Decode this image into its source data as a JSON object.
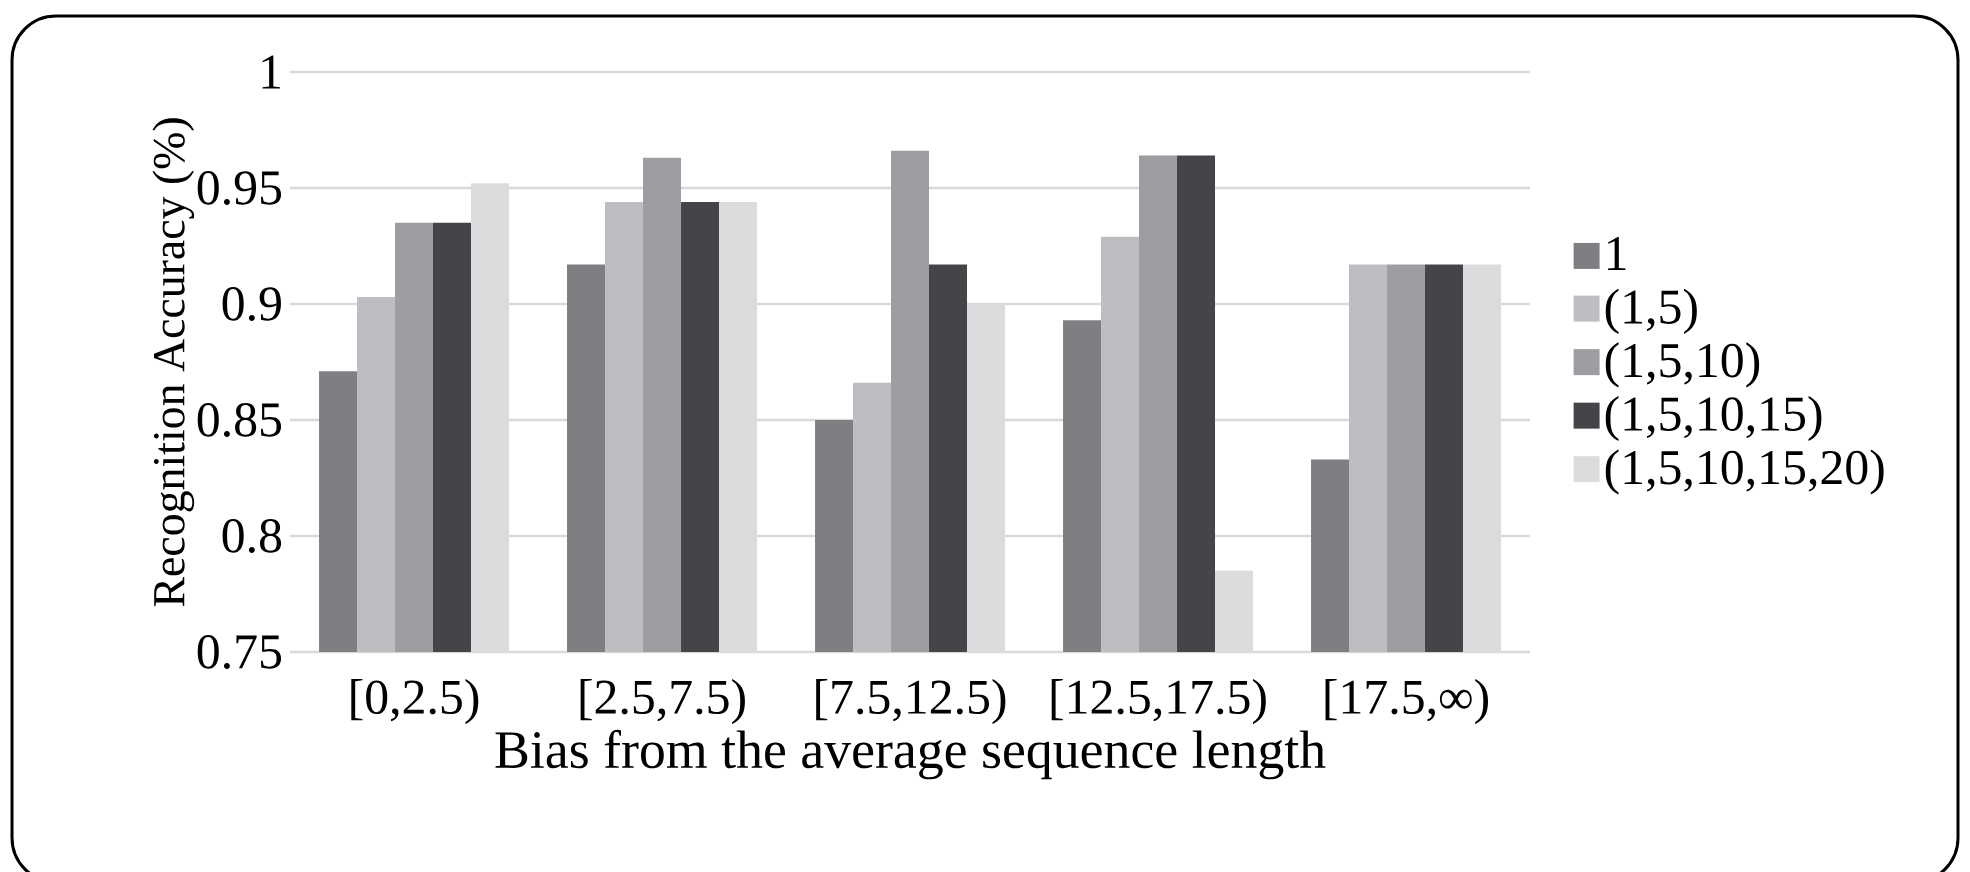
{
  "chart_data": {
    "type": "bar",
    "xlabel": "Bias from the average sequence length",
    "ylabel": "Recognition Accuracy (%)",
    "categories": [
      "[0,2.5)",
      "[2.5,7.5)",
      "[7.5,12.5)",
      "[12.5,17.5)",
      "[17.5,∞)"
    ],
    "series": [
      {
        "name": "1",
        "color": "#7f7f83",
        "values": [
          0.871,
          0.917,
          0.85,
          0.893,
          0.833
        ]
      },
      {
        "name": "(1,5)",
        "color": "#bdbec2",
        "values": [
          0.903,
          0.944,
          0.866,
          0.929,
          0.917
        ]
      },
      {
        "name": "(1,5,10)",
        "color": "#9d9ea2",
        "values": [
          0.935,
          0.963,
          0.966,
          0.964,
          0.917
        ]
      },
      {
        "name": "(1,5,10,15)",
        "color": "#444548",
        "values": [
          0.935,
          0.944,
          0.917,
          0.964,
          0.917
        ]
      },
      {
        "name": "(1,5,10,15,20)",
        "color": "#dcdcde",
        "values": [
          0.952,
          0.944,
          0.9,
          0.785,
          0.917
        ]
      }
    ],
    "ylim": [
      0.75,
      1
    ],
    "yticks": [
      0.75,
      0.8,
      0.85,
      0.9,
      0.95,
      1
    ],
    "grid": "y",
    "legend": "right"
  }
}
